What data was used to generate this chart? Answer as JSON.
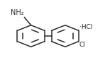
{
  "bg_color": "#ffffff",
  "line_color": "#2a2a2a",
  "lw": 1.1,
  "font_size": 7.0,
  "nh2_label": "NH₂",
  "hcl_label": "·HCl",
  "cl_label": "Cl",
  "r1cx": 0.295,
  "r1cy": 0.5,
  "r2cx": 0.62,
  "r2cy": 0.5,
  "ring_r": 0.15
}
